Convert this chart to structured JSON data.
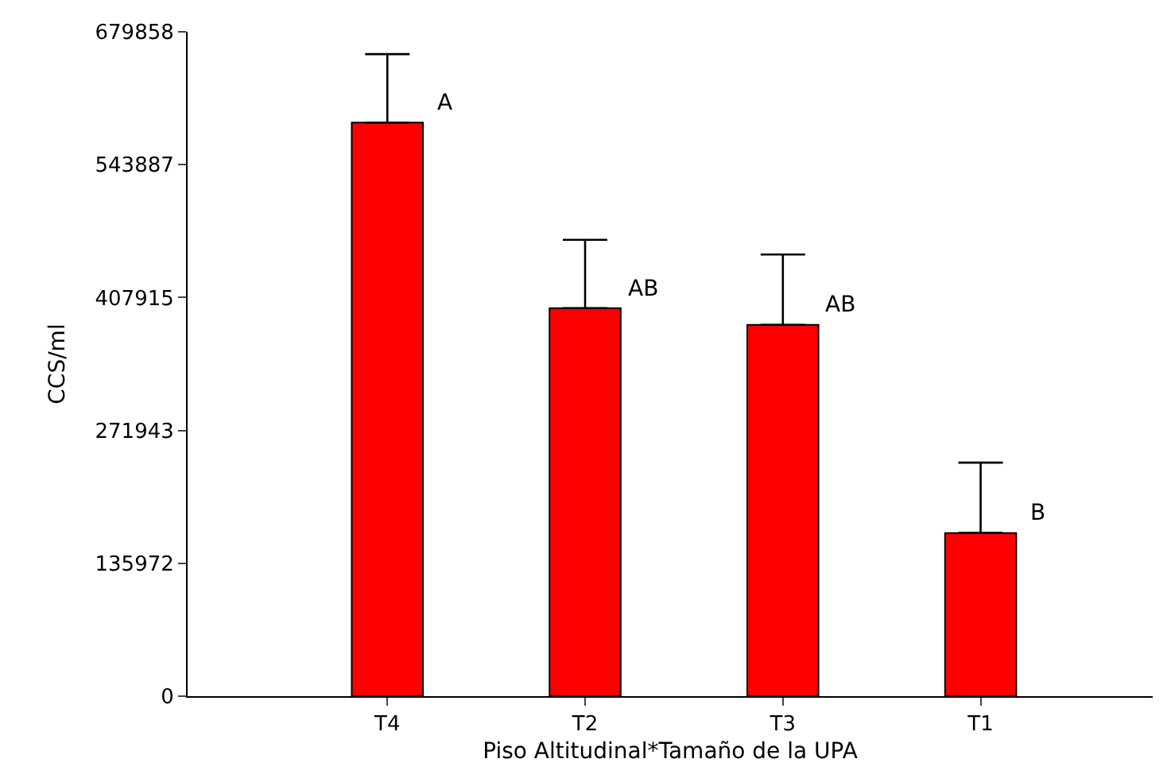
{
  "chart_data": {
    "type": "bar",
    "xlabel": "Piso Altitudinal*Tamaño de la UPA",
    "ylabel": "CCS/ml",
    "categories": [
      "T4",
      "T2",
      "T3",
      "T1"
    ],
    "values": [
      587000,
      397000,
      380000,
      167000
    ],
    "errors": [
      [
        587000,
        657000
      ],
      [
        397000,
        467000
      ],
      [
        380000,
        452000
      ],
      [
        167000,
        239000
      ]
    ],
    "color": "#ff0000",
    "ylim": [
      0,
      679858
    ],
    "yticks": [
      0,
      135972,
      271943,
      407915,
      543887,
      679858
    ],
    "annotations": [
      {
        "text": "A",
        "x": "T4",
        "y": 587000
      },
      {
        "text": "AB",
        "x": "T2",
        "y": 397000
      },
      {
        "text": "AB",
        "x": "T3",
        "y": 380000
      },
      {
        "text": "B",
        "x": "T1",
        "y": 167000
      }
    ],
    "tick_labels": "xy"
  }
}
